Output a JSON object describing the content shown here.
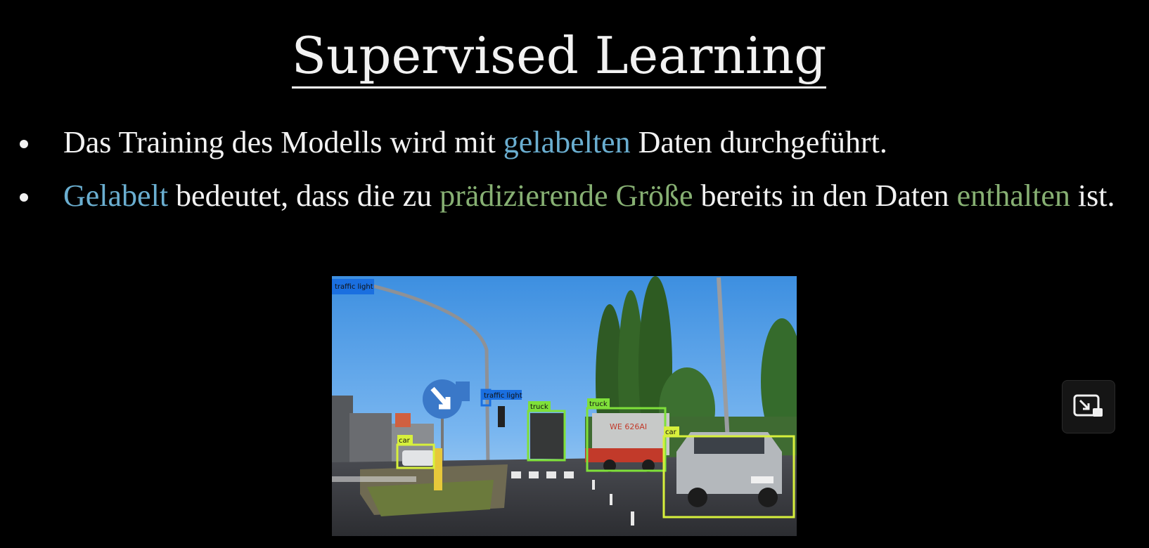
{
  "slide": {
    "title": "Supervised Learning",
    "bullet1": {
      "pre": "Das Training des Modells wird mit ",
      "highlight": "gelabelten",
      "post": " Daten durchgeführt."
    },
    "bullet2": {
      "part1": "Gelabelt",
      "part2": " bedeutet, dass die zu ",
      "part3": "prädizierende Größe",
      "part4": " bereits in den Daten ",
      "part5": "enthalten",
      "part6": " ist."
    }
  },
  "image": {
    "labels": {
      "traffic_light_1": "traffic light",
      "traffic_light_2": "traffic light",
      "truck_1": "truck",
      "truck_2": "truck",
      "car_1": "car",
      "car_2": "car"
    },
    "truck_plate": "WE 626AI",
    "colors": {
      "yellow_box": "#d7f03c",
      "green_box": "#7fe03a",
      "blue_box": "#1a6fe0"
    }
  },
  "controls": {
    "pip_icon": "exit-picture-in-picture-icon"
  },
  "colors": {
    "accent_blue": "#6aaed0",
    "accent_green": "#87b073",
    "text": "#f2f2f2",
    "background": "#000000"
  }
}
